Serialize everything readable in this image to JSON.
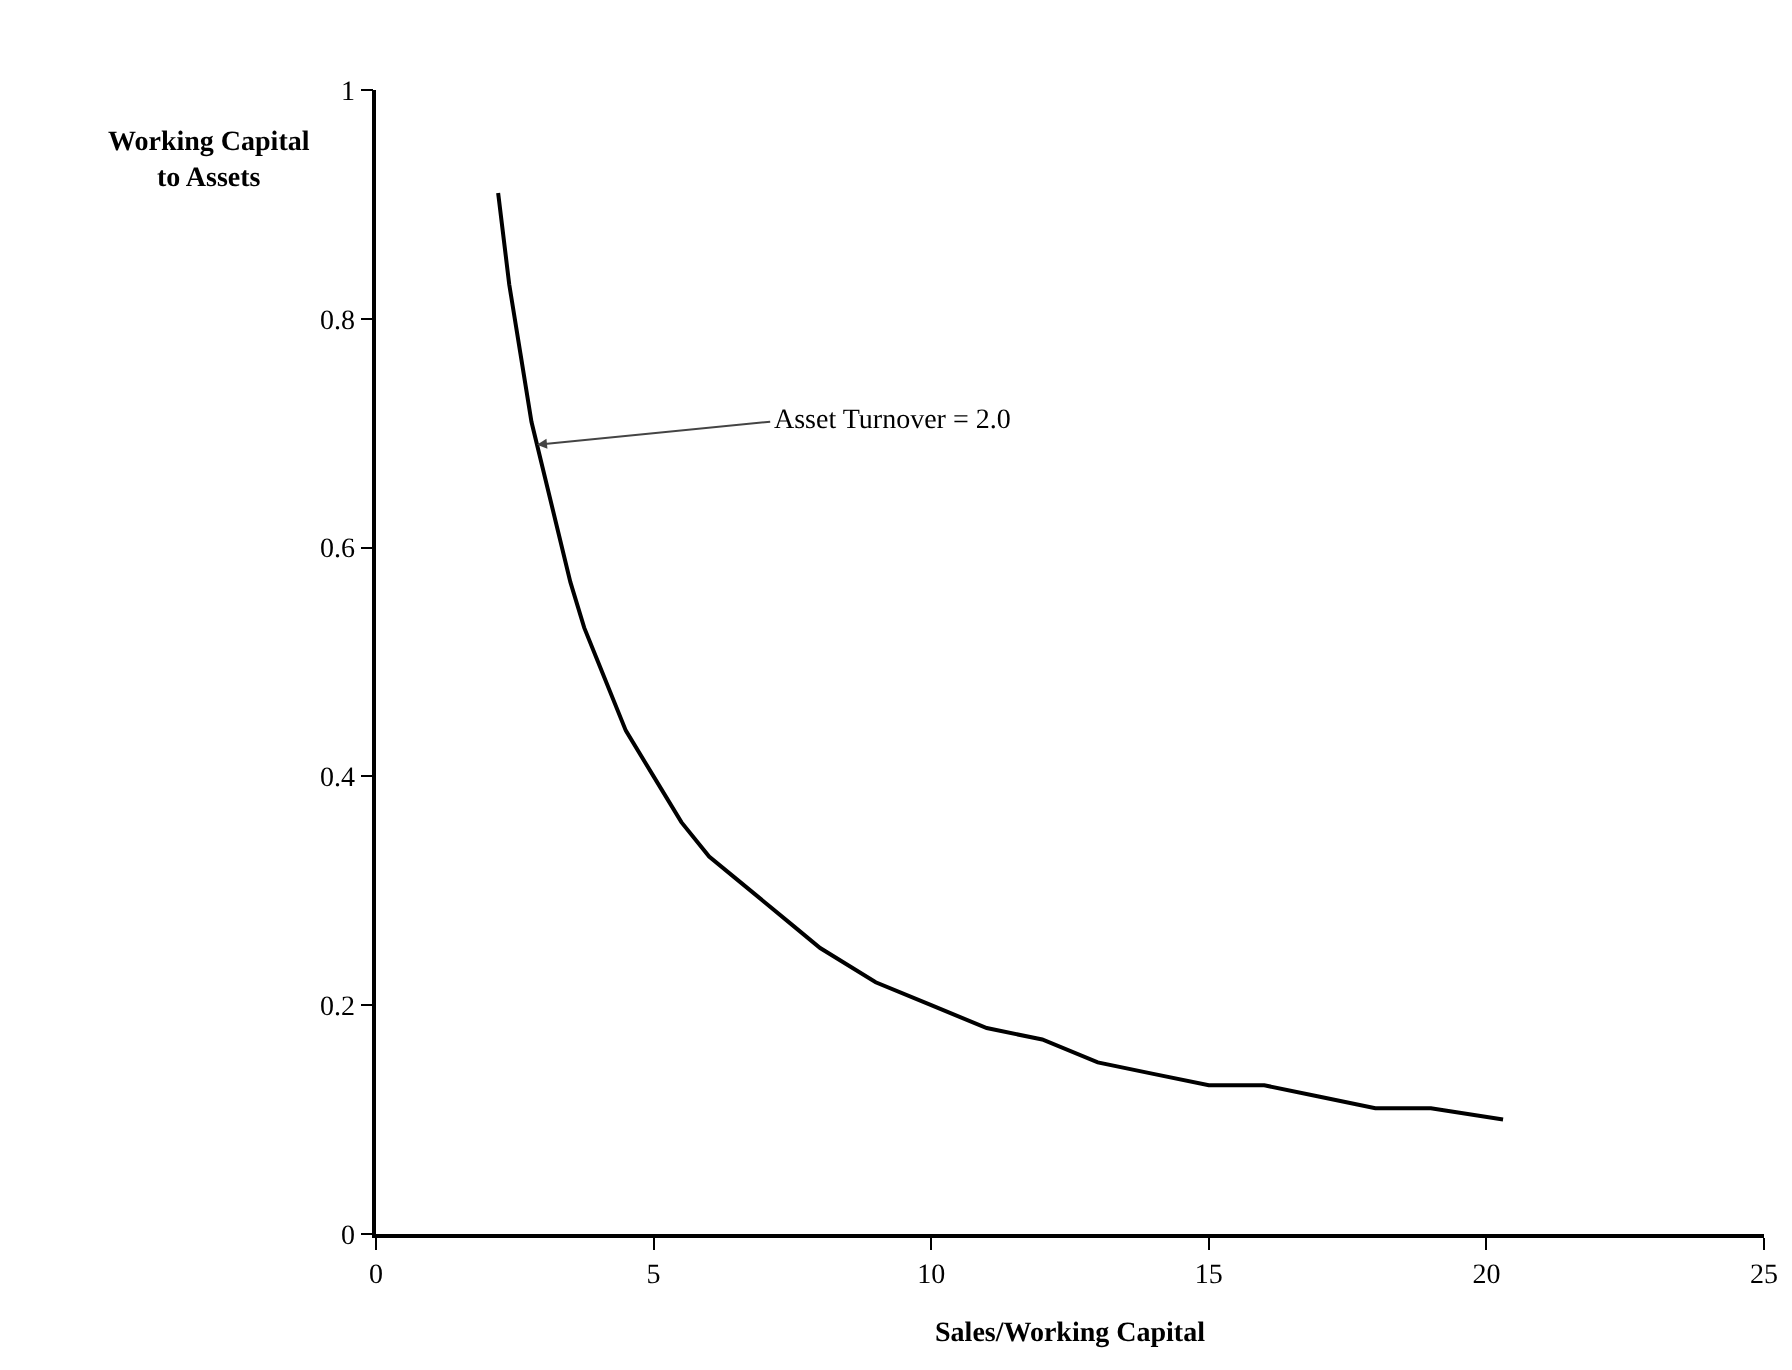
{
  "chart_data": {
    "type": "line",
    "xlabel": "Sales/Working Capital",
    "ylabel": "Working Capital to Assets",
    "x": [
      2.2,
      2.4,
      2.6,
      2.8,
      3,
      3.25,
      3.5,
      3.75,
      4,
      4.5,
      5,
      5.5,
      6,
      6.5,
      7,
      7.5,
      8,
      9,
      10,
      11,
      12,
      13,
      14,
      15,
      16,
      17,
      18,
      19,
      20.3
    ],
    "series": [
      {
        "color": "#000000",
        "values": [
          0.91,
          0.83,
          0.77,
          0.71,
          0.67,
          0.62,
          0.57,
          0.53,
          0.5,
          0.44,
          0.4,
          0.36,
          0.33,
          0.31,
          0.29,
          0.27,
          0.25,
          0.22,
          0.2,
          0.18,
          0.17,
          0.15,
          0.14,
          0.13,
          0.13,
          0.12,
          0.11,
          0.11,
          0.1
        ]
      }
    ],
    "annotations": [
      {
        "text": "Asset Turnover = 2.0",
        "x": 2.9,
        "y": 0.69
      }
    ],
    "xlim": [
      0,
      25
    ],
    "xticks": [
      0,
      5,
      10,
      15,
      20,
      25
    ],
    "ylim": [
      0,
      1
    ],
    "yticks": [
      0,
      0.2,
      0.4,
      0.6,
      0.8,
      1
    ],
    "grid": false,
    "marker": "none",
    "line_style": "solid"
  }
}
